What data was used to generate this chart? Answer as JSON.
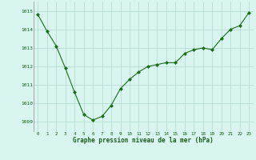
{
  "hours": [
    0,
    1,
    2,
    3,
    4,
    5,
    6,
    7,
    8,
    9,
    10,
    11,
    12,
    13,
    14,
    15,
    16,
    17,
    18,
    19,
    20,
    21,
    22,
    23
  ],
  "pressure": [
    1014.8,
    1013.9,
    1013.1,
    1011.9,
    1010.6,
    1009.4,
    1009.1,
    1009.3,
    1009.9,
    1010.8,
    1011.3,
    1011.7,
    1012.0,
    1012.1,
    1012.2,
    1012.2,
    1012.7,
    1012.9,
    1013.0,
    1012.9,
    1013.5,
    1014.0,
    1014.2,
    1014.9
  ],
  "line_color": "#1a6e1a",
  "marker": "D",
  "marker_size": 2.0,
  "bg_color": "#d8f5ef",
  "grid_color": "#b0d8cc",
  "xlabel": "Graphe pression niveau de la mer (hPa)",
  "xlabel_color": "#1a5c1a",
  "tick_color": "#1a5c1a",
  "ylim": [
    1008.5,
    1015.5
  ],
  "yticks": [
    1009,
    1010,
    1011,
    1012,
    1013,
    1014,
    1015
  ],
  "xticks": [
    0,
    1,
    2,
    3,
    4,
    5,
    6,
    7,
    8,
    9,
    10,
    11,
    12,
    13,
    14,
    15,
    16,
    17,
    18,
    19,
    20,
    21,
    22,
    23
  ]
}
